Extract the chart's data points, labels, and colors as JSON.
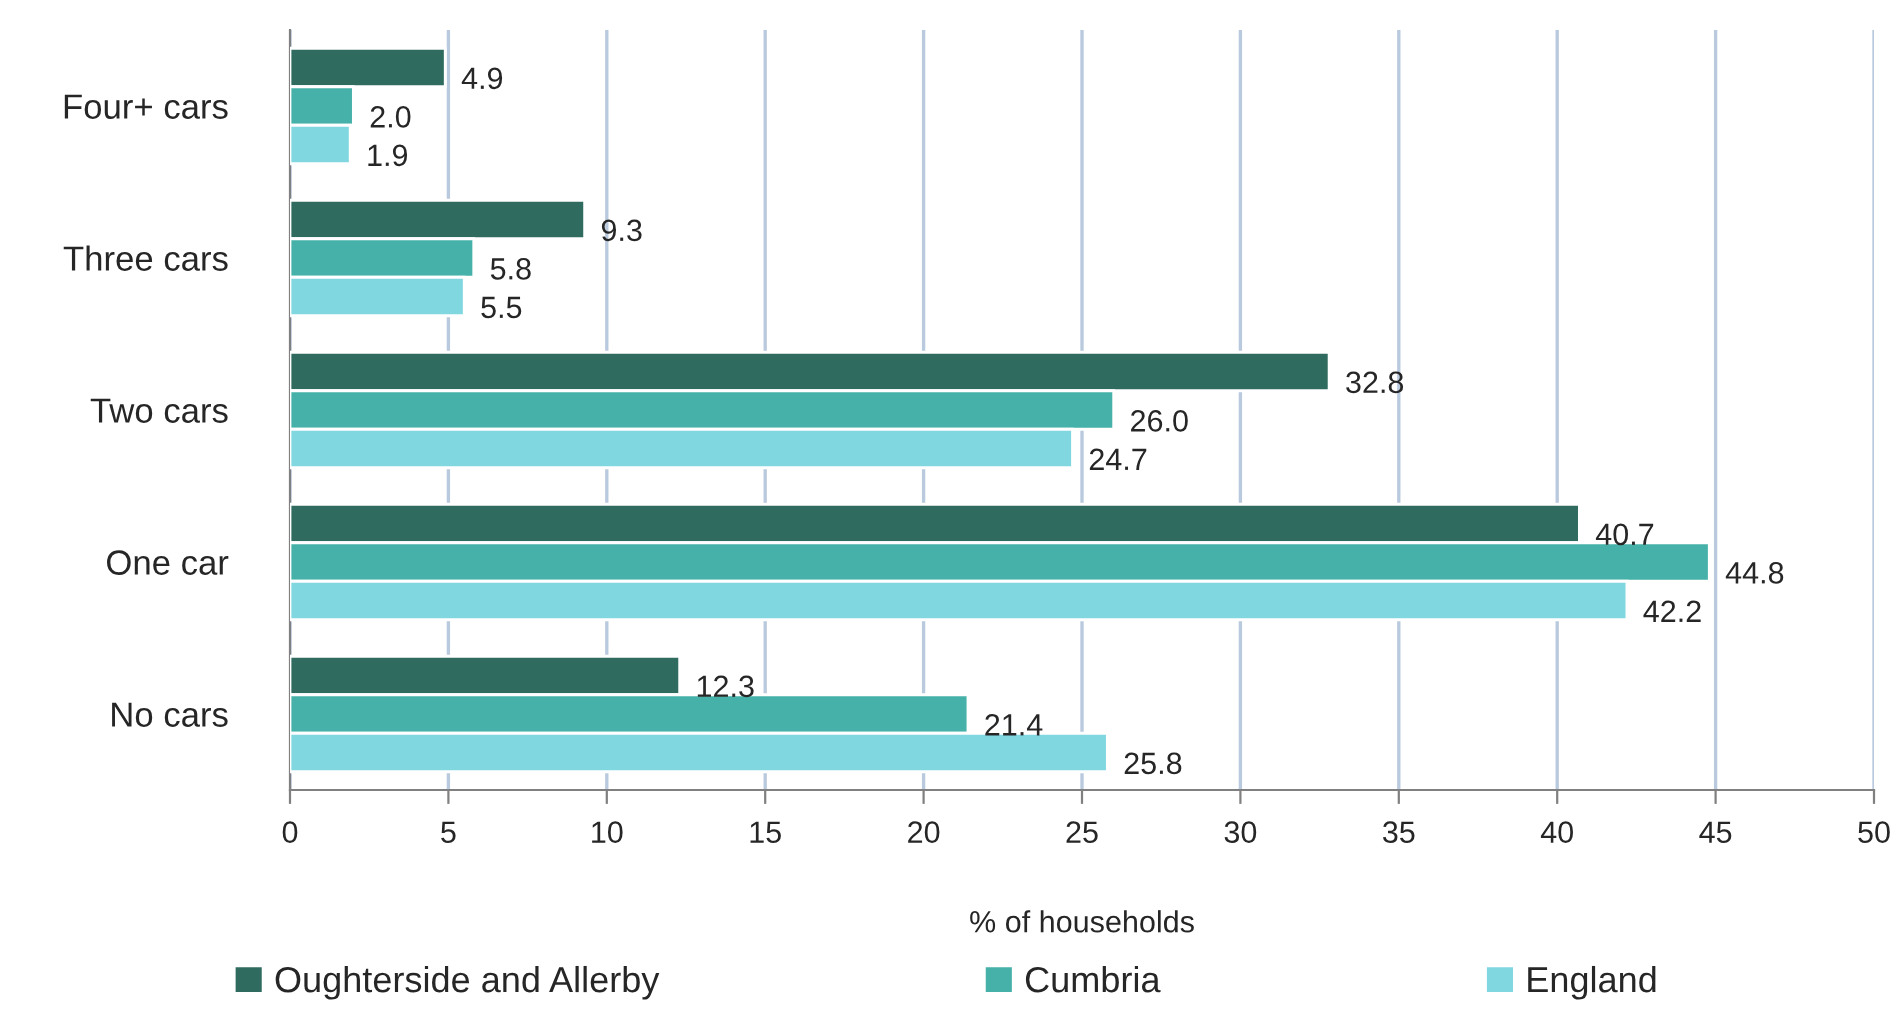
{
  "chart_data": {
    "type": "bar",
    "orientation": "horizontal",
    "xlabel": "% of households",
    "categories": [
      "Four+ cars",
      "Three cars",
      "Two cars",
      "One car",
      "No cars"
    ],
    "series": [
      {
        "name": "Oughterside and Allerby",
        "color": "#2f6b5f",
        "values": [
          4.9,
          9.3,
          32.8,
          40.7,
          12.3
        ],
        "value_labels": [
          "4.9",
          "9.3",
          "32.8",
          "40.7",
          "12.3"
        ]
      },
      {
        "name": "Cumbria",
        "color": "#46b1a9",
        "values": [
          2.0,
          5.8,
          26.0,
          44.8,
          21.4
        ],
        "value_labels": [
          "2.0",
          "5.8",
          "26.0",
          "44.8",
          "21.4"
        ]
      },
      {
        "name": "England",
        "color": "#80d7e0",
        "values": [
          1.9,
          5.5,
          24.7,
          42.2,
          25.8
        ],
        "value_labels": [
          "1.9",
          "5.5",
          "24.7",
          "42.2",
          "25.8"
        ]
      }
    ],
    "xlim": [
      0,
      50
    ],
    "xticks": [
      0,
      5,
      10,
      15,
      20,
      25,
      30,
      35,
      40,
      45,
      50
    ],
    "grid": "x",
    "legend": "bottom"
  }
}
